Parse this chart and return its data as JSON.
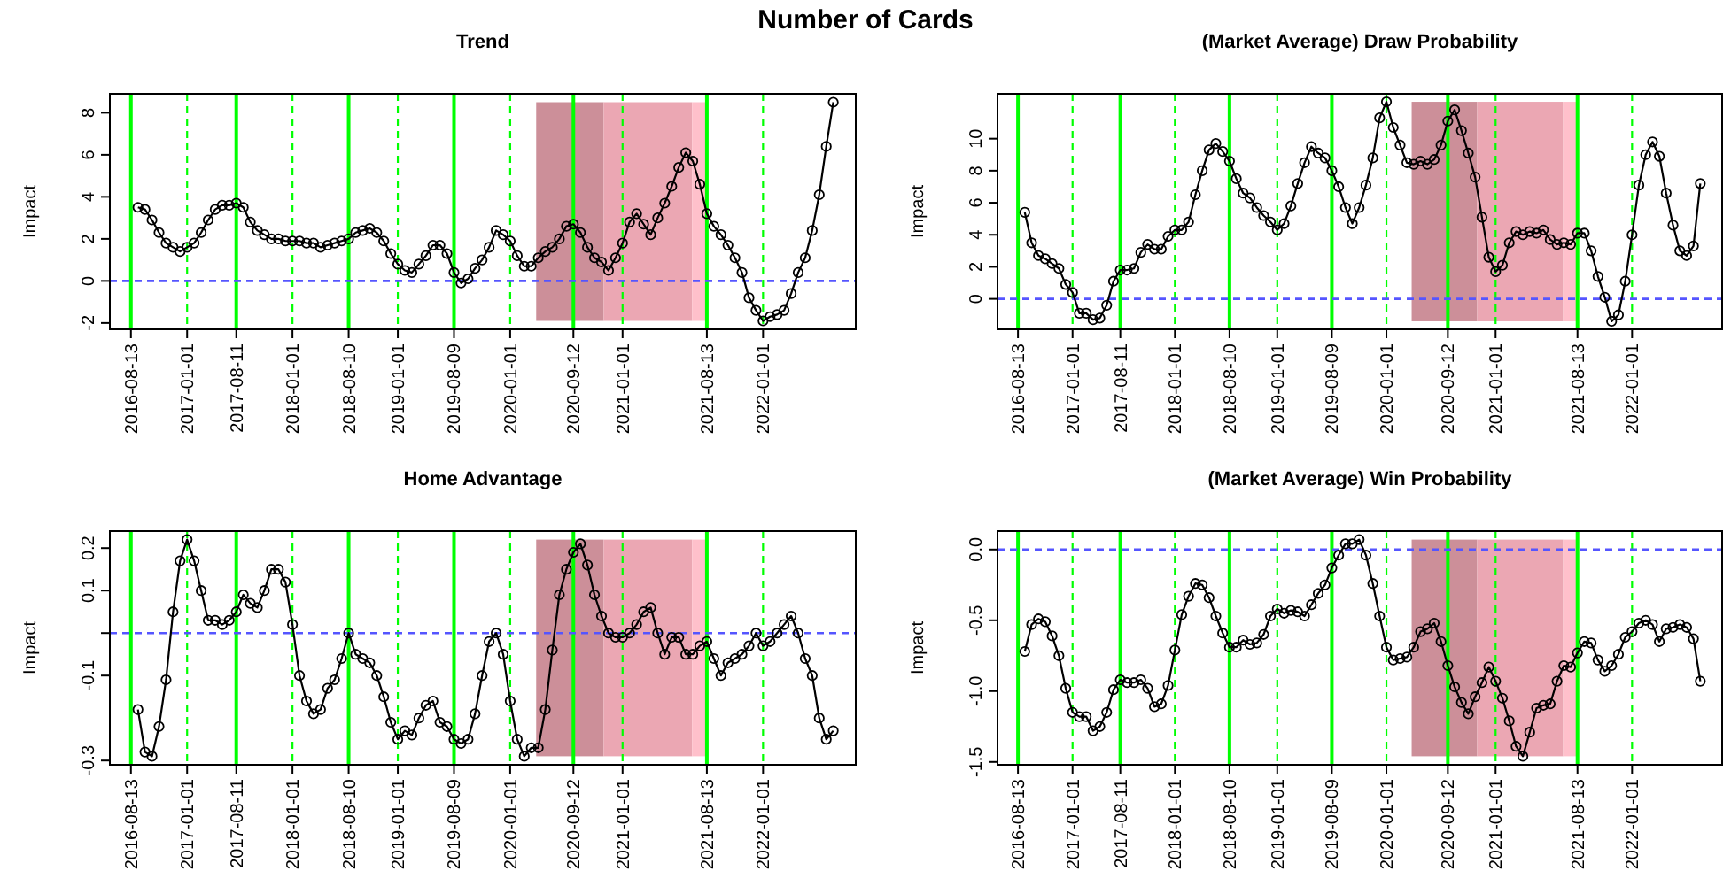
{
  "chart_data": [
    {
      "type": "line",
      "title": "Trend",
      "ylabel": "Impact",
      "annotations": [
        "Number of Cards"
      ],
      "marker": "circle",
      "categories": [
        "2016-08-13",
        null,
        null,
        null,
        null,
        null,
        null,
        null,
        "2017-01-01",
        null,
        null,
        null,
        null,
        null,
        null,
        "2017-08-11",
        null,
        null,
        null,
        null,
        null,
        null,
        null,
        "2018-01-01",
        null,
        null,
        null,
        null,
        null,
        null,
        null,
        "2018-08-10",
        null,
        null,
        null,
        null,
        null,
        null,
        "2019-01-01",
        null,
        null,
        null,
        null,
        null,
        null,
        null,
        "2019-08-09",
        null,
        null,
        null,
        null,
        null,
        null,
        null,
        "2020-01-01",
        null,
        null,
        null,
        null,
        null,
        null,
        null,
        null,
        "2020-09-12",
        null,
        null,
        null,
        null,
        null,
        null,
        "2021-01-01",
        null,
        null,
        null,
        null,
        null,
        null,
        null,
        null,
        null,
        null,
        null,
        "2021-08-13",
        null,
        null,
        null,
        null,
        null,
        null,
        null,
        "2022-01-01",
        null,
        null,
        null,
        null,
        null,
        null,
        null,
        null,
        null,
        null
      ],
      "series": [
        {
          "color": "#000000",
          "values": [
            null,
            3.5,
            3.4,
            2.9,
            2.3,
            1.8,
            1.6,
            1.4,
            1.6,
            1.8,
            2.3,
            2.9,
            3.4,
            3.6,
            3.6,
            3.7,
            3.5,
            2.8,
            2.4,
            2.2,
            2.0,
            2.0,
            1.9,
            1.9,
            1.9,
            1.8,
            1.8,
            1.6,
            1.7,
            1.8,
            1.9,
            2.0,
            2.3,
            2.4,
            2.5,
            2.3,
            1.9,
            1.3,
            0.8,
            0.5,
            0.4,
            0.8,
            1.2,
            1.7,
            1.7,
            1.3,
            0.4,
            -0.1,
            0.1,
            0.6,
            1.0,
            1.6,
            2.4,
            2.2,
            1.9,
            1.2,
            0.7,
            0.7,
            1.1,
            1.4,
            1.6,
            2.0,
            2.6,
            2.7,
            2.3,
            1.6,
            1.1,
            0.9,
            0.5,
            1.1,
            1.8,
            2.8,
            3.2,
            2.7,
            2.2,
            3.0,
            3.7,
            4.5,
            5.4,
            6.1,
            5.7,
            4.6,
            3.2,
            2.6,
            2.2,
            1.7,
            1.1,
            0.4,
            -0.8,
            -1.4,
            -1.9,
            -1.7,
            -1.6,
            -1.4,
            -0.6,
            0.4,
            1.1,
            2.4,
            4.1,
            6.4,
            8.5
          ]
        }
      ],
      "ylim": [
        -2.3,
        8.9
      ],
      "yticks": [
        -2,
        0,
        2,
        4,
        6,
        8
      ],
      "ref_lines": [
        {
          "axis": "x",
          "value": "2016-08-13",
          "color": "#00ff00",
          "line_style": "solid"
        },
        {
          "axis": "x",
          "value": "2017-01-01",
          "color": "#00ff00",
          "line_style": "dashed"
        },
        {
          "axis": "x",
          "value": "2017-08-11",
          "color": "#00ff00",
          "line_style": "solid"
        },
        {
          "axis": "x",
          "value": "2018-01-01",
          "color": "#00ff00",
          "line_style": "dashed"
        },
        {
          "axis": "x",
          "value": "2018-08-10",
          "color": "#00ff00",
          "line_style": "solid"
        },
        {
          "axis": "x",
          "value": "2019-01-01",
          "color": "#00ff00",
          "line_style": "dashed"
        },
        {
          "axis": "x",
          "value": "2019-08-09",
          "color": "#00ff00",
          "line_style": "solid"
        },
        {
          "axis": "x",
          "value": "2020-01-01",
          "color": "#00ff00",
          "line_style": "dashed"
        },
        {
          "axis": "x",
          "value": "2020-09-12",
          "color": "#00ff00",
          "line_style": "solid"
        },
        {
          "axis": "x",
          "value": "2021-01-01",
          "color": "#00ff00",
          "line_style": "dashed"
        },
        {
          "axis": "x",
          "value": "2021-08-13",
          "color": "#00ff00",
          "line_style": "solid"
        },
        {
          "axis": "x",
          "value": "2022-01-01",
          "color": "#00ff00",
          "line_style": "dashed"
        },
        {
          "axis": "y",
          "value": 0,
          "color": "#5555ff",
          "line_style": "dashed"
        }
      ]
    },
    {
      "type": "line",
      "title": "(Market Average) Draw Probability",
      "ylabel": "Impact",
      "marker": "circle",
      "categories": [
        "2016-08-13",
        null,
        null,
        null,
        null,
        null,
        null,
        null,
        "2017-01-01",
        null,
        null,
        null,
        null,
        null,
        null,
        "2017-08-11",
        null,
        null,
        null,
        null,
        null,
        null,
        null,
        "2018-01-01",
        null,
        null,
        null,
        null,
        null,
        null,
        null,
        "2018-08-10",
        null,
        null,
        null,
        null,
        null,
        null,
        "2019-01-01",
        null,
        null,
        null,
        null,
        null,
        null,
        null,
        "2019-08-09",
        null,
        null,
        null,
        null,
        null,
        null,
        null,
        "2020-01-01",
        null,
        null,
        null,
        null,
        null,
        null,
        null,
        null,
        "2020-09-12",
        null,
        null,
        null,
        null,
        null,
        null,
        "2021-01-01",
        null,
        null,
        null,
        null,
        null,
        null,
        null,
        null,
        null,
        null,
        null,
        "2021-08-13",
        null,
        null,
        null,
        null,
        null,
        null,
        null,
        "2022-01-01",
        null,
        null,
        null,
        null,
        null,
        null,
        null,
        null,
        null,
        null
      ],
      "series": [
        {
          "color": "#000000",
          "values": [
            null,
            5.4,
            3.5,
            2.7,
            2.5,
            2.2,
            1.9,
            0.9,
            0.4,
            -0.9,
            -0.9,
            -1.3,
            -1.2,
            -0.4,
            1.1,
            1.8,
            1.8,
            1.9,
            2.9,
            3.4,
            3.1,
            3.1,
            3.9,
            4.3,
            4.3,
            4.8,
            6.5,
            8.0,
            9.3,
            9.7,
            9.2,
            8.6,
            7.5,
            6.6,
            6.3,
            5.7,
            5.2,
            4.8,
            4.3,
            4.7,
            5.8,
            7.2,
            8.5,
            9.5,
            9.1,
            8.8,
            8.0,
            7.0,
            5.7,
            4.7,
            5.7,
            7.1,
            8.8,
            11.3,
            12.3,
            10.7,
            9.6,
            8.5,
            8.4,
            8.6,
            8.4,
            8.7,
            9.6,
            11.1,
            11.8,
            10.5,
            9.1,
            7.6,
            5.1,
            2.6,
            1.7,
            2.1,
            3.5,
            4.2,
            4.0,
            4.2,
            4.1,
            4.3,
            3.7,
            3.4,
            3.5,
            3.4,
            4.1,
            4.1,
            3.0,
            1.4,
            0.1,
            -1.4,
            -1.0,
            1.1,
            4.0,
            7.1,
            9.0,
            9.8,
            8.9,
            6.6,
            4.6,
            3.0,
            2.7,
            3.3,
            7.2
          ]
        }
      ],
      "ylim": [
        -1.9,
        12.8
      ],
      "yticks": [
        0,
        2,
        4,
        6,
        8,
        10
      ],
      "ref_lines": [
        {
          "axis": "x",
          "value": "2016-08-13",
          "color": "#00ff00",
          "line_style": "solid"
        },
        {
          "axis": "x",
          "value": "2017-01-01",
          "color": "#00ff00",
          "line_style": "dashed"
        },
        {
          "axis": "x",
          "value": "2017-08-11",
          "color": "#00ff00",
          "line_style": "solid"
        },
        {
          "axis": "x",
          "value": "2018-01-01",
          "color": "#00ff00",
          "line_style": "dashed"
        },
        {
          "axis": "x",
          "value": "2018-08-10",
          "color": "#00ff00",
          "line_style": "solid"
        },
        {
          "axis": "x",
          "value": "2019-01-01",
          "color": "#00ff00",
          "line_style": "dashed"
        },
        {
          "axis": "x",
          "value": "2019-08-09",
          "color": "#00ff00",
          "line_style": "solid"
        },
        {
          "axis": "x",
          "value": "2020-01-01",
          "color": "#00ff00",
          "line_style": "dashed"
        },
        {
          "axis": "x",
          "value": "2020-09-12",
          "color": "#00ff00",
          "line_style": "solid"
        },
        {
          "axis": "x",
          "value": "2021-01-01",
          "color": "#00ff00",
          "line_style": "dashed"
        },
        {
          "axis": "x",
          "value": "2021-08-13",
          "color": "#00ff00",
          "line_style": "solid"
        },
        {
          "axis": "x",
          "value": "2022-01-01",
          "color": "#00ff00",
          "line_style": "dashed"
        },
        {
          "axis": "y",
          "value": 0,
          "color": "#5555ff",
          "line_style": "dashed"
        }
      ]
    },
    {
      "type": "line",
      "title": "Home Advantage",
      "ylabel": "Impact",
      "marker": "circle",
      "categories": [
        "2016-08-13",
        null,
        null,
        null,
        null,
        null,
        null,
        null,
        "2017-01-01",
        null,
        null,
        null,
        null,
        null,
        null,
        "2017-08-11",
        null,
        null,
        null,
        null,
        null,
        null,
        null,
        "2018-01-01",
        null,
        null,
        null,
        null,
        null,
        null,
        null,
        "2018-08-10",
        null,
        null,
        null,
        null,
        null,
        null,
        "2019-01-01",
        null,
        null,
        null,
        null,
        null,
        null,
        null,
        "2019-08-09",
        null,
        null,
        null,
        null,
        null,
        null,
        null,
        "2020-01-01",
        null,
        null,
        null,
        null,
        null,
        null,
        null,
        null,
        "2020-09-12",
        null,
        null,
        null,
        null,
        null,
        null,
        "2021-01-01",
        null,
        null,
        null,
        null,
        null,
        null,
        null,
        null,
        null,
        null,
        null,
        "2021-08-13",
        null,
        null,
        null,
        null,
        null,
        null,
        null,
        "2022-01-01",
        null,
        null,
        null,
        null,
        null,
        null,
        null,
        null,
        null,
        null
      ],
      "series": [
        {
          "color": "#000000",
          "values": [
            null,
            -0.18,
            -0.28,
            -0.29,
            -0.22,
            -0.11,
            0.05,
            0.17,
            0.22,
            0.17,
            0.1,
            0.03,
            0.03,
            0.02,
            0.03,
            0.05,
            0.09,
            0.07,
            0.06,
            0.1,
            0.15,
            0.15,
            0.12,
            0.02,
            -0.1,
            -0.16,
            -0.19,
            -0.18,
            -0.13,
            -0.11,
            -0.06,
            0.0,
            -0.05,
            -0.06,
            -0.07,
            -0.1,
            -0.15,
            -0.21,
            -0.25,
            -0.23,
            -0.24,
            -0.2,
            -0.17,
            -0.16,
            -0.21,
            -0.22,
            -0.25,
            -0.26,
            -0.25,
            -0.19,
            -0.1,
            -0.02,
            0.0,
            -0.05,
            -0.16,
            -0.25,
            -0.29,
            -0.27,
            -0.27,
            -0.18,
            -0.04,
            0.09,
            0.15,
            0.19,
            0.21,
            0.16,
            0.09,
            0.04,
            0.0,
            -0.01,
            -0.01,
            0.0,
            0.02,
            0.05,
            0.06,
            0.0,
            -0.05,
            -0.01,
            -0.01,
            -0.05,
            -0.05,
            -0.03,
            -0.02,
            -0.06,
            -0.1,
            -0.07,
            -0.06,
            -0.05,
            -0.03,
            0.0,
            -0.03,
            -0.02,
            0.0,
            0.02,
            0.04,
            0.0,
            -0.06,
            -0.1,
            -0.2,
            -0.25,
            -0.23
          ]
        }
      ],
      "ylim": [
        -0.31,
        0.24
      ],
      "yticks": [
        -0.3,
        -0.1,
        {
          "value": 0,
          "label": null
        },
        0.1,
        0.2
      ],
      "ref_lines": [
        {
          "axis": "x",
          "value": "2016-08-13",
          "color": "#00ff00",
          "line_style": "solid"
        },
        {
          "axis": "x",
          "value": "2017-01-01",
          "color": "#00ff00",
          "line_style": "dashed"
        },
        {
          "axis": "x",
          "value": "2017-08-11",
          "color": "#00ff00",
          "line_style": "solid"
        },
        {
          "axis": "x",
          "value": "2018-01-01",
          "color": "#00ff00",
          "line_style": "dashed"
        },
        {
          "axis": "x",
          "value": "2018-08-10",
          "color": "#00ff00",
          "line_style": "solid"
        },
        {
          "axis": "x",
          "value": "2019-01-01",
          "color": "#00ff00",
          "line_style": "dashed"
        },
        {
          "axis": "x",
          "value": "2019-08-09",
          "color": "#00ff00",
          "line_style": "solid"
        },
        {
          "axis": "x",
          "value": "2020-01-01",
          "color": "#00ff00",
          "line_style": "dashed"
        },
        {
          "axis": "x",
          "value": "2020-09-12",
          "color": "#00ff00",
          "line_style": "solid"
        },
        {
          "axis": "x",
          "value": "2021-01-01",
          "color": "#00ff00",
          "line_style": "dashed"
        },
        {
          "axis": "x",
          "value": "2021-08-13",
          "color": "#00ff00",
          "line_style": "solid"
        },
        {
          "axis": "x",
          "value": "2022-01-01",
          "color": "#00ff00",
          "line_style": "dashed"
        },
        {
          "axis": "y",
          "value": 0,
          "color": "#5555ff",
          "line_style": "dashed"
        }
      ]
    },
    {
      "type": "line",
      "title": "(Market Average) Win Probability",
      "ylabel": "Impact",
      "marker": "circle",
      "categories": [
        "2016-08-13",
        null,
        null,
        null,
        null,
        null,
        null,
        null,
        "2017-01-01",
        null,
        null,
        null,
        null,
        null,
        null,
        "2017-08-11",
        null,
        null,
        null,
        null,
        null,
        null,
        null,
        "2018-01-01",
        null,
        null,
        null,
        null,
        null,
        null,
        null,
        "2018-08-10",
        null,
        null,
        null,
        null,
        null,
        null,
        "2019-01-01",
        null,
        null,
        null,
        null,
        null,
        null,
        null,
        "2019-08-09",
        null,
        null,
        null,
        null,
        null,
        null,
        null,
        "2020-01-01",
        null,
        null,
        null,
        null,
        null,
        null,
        null,
        null,
        "2020-09-12",
        null,
        null,
        null,
        null,
        null,
        null,
        "2021-01-01",
        null,
        null,
        null,
        null,
        null,
        null,
        null,
        null,
        null,
        null,
        null,
        "2021-08-13",
        null,
        null,
        null,
        null,
        null,
        null,
        null,
        "2022-01-01",
        null,
        null,
        null,
        null,
        null,
        null,
        null,
        null,
        null,
        null
      ],
      "series": [
        {
          "color": "#000000",
          "values": [
            null,
            -0.72,
            -0.53,
            -0.49,
            -0.51,
            -0.61,
            -0.75,
            -0.98,
            -1.15,
            -1.18,
            -1.18,
            -1.28,
            -1.25,
            -1.15,
            -0.99,
            -0.92,
            -0.94,
            -0.94,
            -0.92,
            -0.98,
            -1.11,
            -1.09,
            -0.96,
            -0.71,
            -0.46,
            -0.33,
            -0.24,
            -0.25,
            -0.34,
            -0.47,
            -0.59,
            -0.69,
            -0.69,
            -0.64,
            -0.67,
            -0.66,
            -0.6,
            -0.47,
            -0.42,
            -0.45,
            -0.43,
            -0.44,
            -0.47,
            -0.39,
            -0.31,
            -0.25,
            -0.13,
            -0.04,
            0.04,
            0.04,
            0.07,
            -0.04,
            -0.24,
            -0.47,
            -0.69,
            -0.78,
            -0.77,
            -0.76,
            -0.69,
            -0.58,
            -0.56,
            -0.52,
            -0.65,
            -0.82,
            -0.97,
            -1.08,
            -1.16,
            -1.04,
            -0.94,
            -0.83,
            -0.93,
            -1.05,
            -1.21,
            -1.39,
            -1.46,
            -1.29,
            -1.12,
            -1.1,
            -1.09,
            -0.93,
            -0.82,
            -0.83,
            -0.73,
            -0.65,
            -0.66,
            -0.78,
            -0.86,
            -0.82,
            -0.74,
            -0.62,
            -0.58,
            -0.52,
            -0.5,
            -0.53,
            -0.65,
            -0.56,
            -0.55,
            -0.53,
            -0.55,
            -0.63,
            -0.93
          ]
        }
      ],
      "ylim": [
        -1.52,
        0.13
      ],
      "yticks": [
        {
          "value": -1.5,
          "label": "-1.5"
        },
        {
          "value": -1,
          "label": "-1.0"
        },
        {
          "value": -0.5,
          "label": "-0.5"
        },
        {
          "value": 0,
          "label": "0.0"
        }
      ],
      "ref_lines": [
        {
          "axis": "x",
          "value": "2016-08-13",
          "color": "#00ff00",
          "line_style": "solid"
        },
        {
          "axis": "x",
          "value": "2017-01-01",
          "color": "#00ff00",
          "line_style": "dashed"
        },
        {
          "axis": "x",
          "value": "2017-08-11",
          "color": "#00ff00",
          "line_style": "solid"
        },
        {
          "axis": "x",
          "value": "2018-01-01",
          "color": "#00ff00",
          "line_style": "dashed"
        },
        {
          "axis": "x",
          "value": "2018-08-10",
          "color": "#00ff00",
          "line_style": "solid"
        },
        {
          "axis": "x",
          "value": "2019-01-01",
          "color": "#00ff00",
          "line_style": "dashed"
        },
        {
          "axis": "x",
          "value": "2019-08-09",
          "color": "#00ff00",
          "line_style": "solid"
        },
        {
          "axis": "x",
          "value": "2020-01-01",
          "color": "#00ff00",
          "line_style": "dashed"
        },
        {
          "axis": "x",
          "value": "2020-09-12",
          "color": "#00ff00",
          "line_style": "solid"
        },
        {
          "axis": "x",
          "value": "2021-01-01",
          "color": "#00ff00",
          "line_style": "dashed"
        },
        {
          "axis": "x",
          "value": "2021-08-13",
          "color": "#00ff00",
          "line_style": "solid"
        },
        {
          "axis": "x",
          "value": "2022-01-01",
          "color": "#00ff00",
          "line_style": "dashed"
        },
        {
          "axis": "y",
          "value": 0,
          "color": "#5555ff",
          "line_style": "dashed"
        }
      ]
    }
  ]
}
